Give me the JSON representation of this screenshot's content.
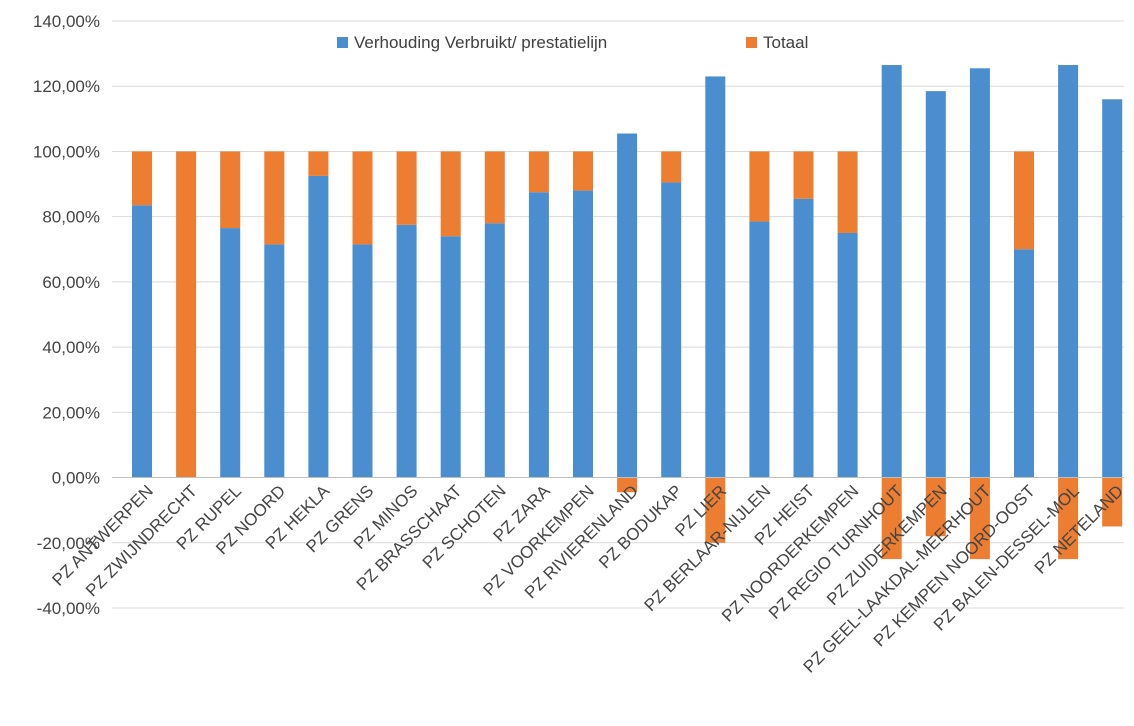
{
  "chart_data": {
    "type": "bar",
    "stacked": true,
    "categories": [
      "PZ ANTWERPEN",
      "PZ ZWIJNDRECHT",
      "PZ RUPEL",
      "PZ NOORD",
      "PZ HEKLA",
      "PZ GRENS",
      "PZ MINOS",
      "PZ BRASSCHAAT",
      "PZ SCHOTEN",
      "PZ ZARA",
      "PZ VOORKEMPEN",
      "PZ RIVIERENLAND",
      "PZ BODUKAP",
      "PZ LIER",
      "PZ BERLAAR-NIJLEN",
      "PZ HEIST",
      "PZ NOORDERKEMPEN",
      "PZ REGIO TURNHOUT",
      "PZ ZUIDERKEMPEN",
      "PZ GEEL-LAAKDAL-MEERHOUT",
      "PZ KEMPEN NOORD-OOST",
      "PZ BALEN-DESSEL-MOL",
      "PZ NETELAND"
    ],
    "series": [
      {
        "name": "Verhouding Verbruikt/ prestatielijn",
        "color": "#4a8ed0",
        "values": [
          83.5,
          0,
          76.5,
          71.5,
          92.5,
          71.5,
          77.5,
          74,
          78,
          87.5,
          88,
          105.5,
          90.5,
          123,
          78.5,
          85.5,
          75,
          126.5,
          118.5,
          125.5,
          70,
          126.5,
          116
        ]
      },
      {
        "name": "Totaal",
        "color": "#ed7d31",
        "values": [
          16.5,
          100,
          23.5,
          28.5,
          7.5,
          28.5,
          22.5,
          26,
          22,
          12.5,
          12,
          -4.5,
          9.5,
          -20,
          21.5,
          14.5,
          25,
          -25,
          -18,
          -25,
          30,
          -25,
          -15
        ]
      }
    ],
    "ylim": [
      -40,
      140
    ],
    "yticks": [
      -40,
      -20,
      0,
      20,
      40,
      60,
      80,
      100,
      120,
      140
    ],
    "ytick_labels": [
      "-40,00%",
      "-20,00%",
      "0,00%",
      "20,00%",
      "40,00%",
      "60,00%",
      "80,00%",
      "100,00%",
      "120,00%",
      "140,00%"
    ],
    "title": "",
    "xlabel": "",
    "ylabel": "",
    "grid": true,
    "legend": "top-center",
    "label_rotation_deg": -45
  }
}
